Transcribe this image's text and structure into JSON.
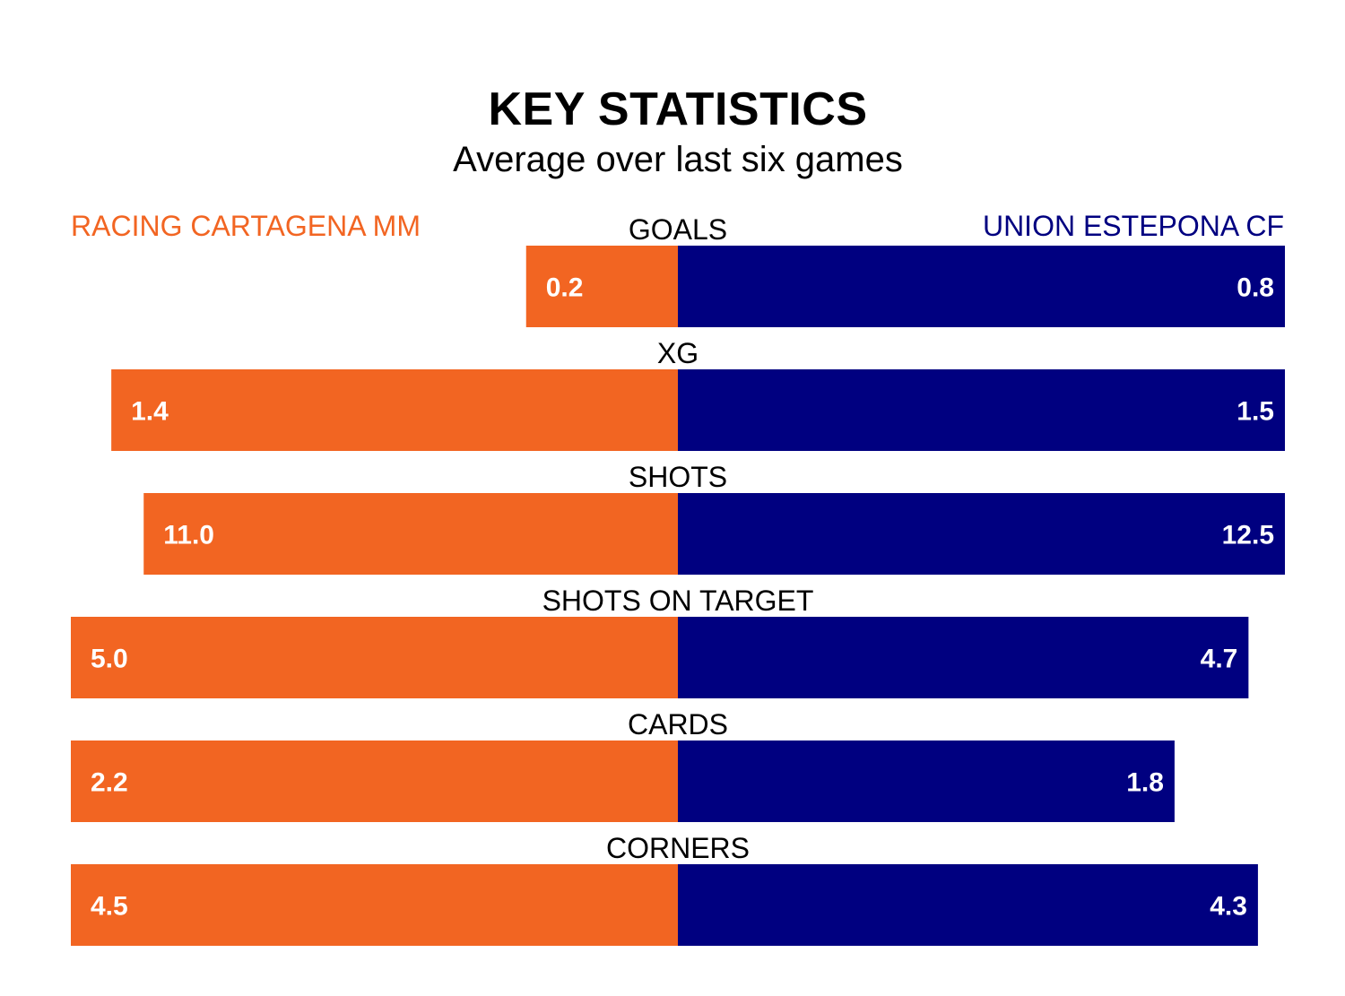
{
  "title": "KEY STATISTICS",
  "subtitle": "Average over last six games",
  "teams": {
    "left": {
      "name": "RACING CARTAGENA MM",
      "color": "#F26522"
    },
    "right": {
      "name": "UNION ESTEPONA CF",
      "color": "#000080"
    }
  },
  "colors": {
    "value_text_inside": "#ffffff",
    "value_text_outside": "#000000",
    "category_text": "#000000"
  },
  "chart_data": {
    "type": "bar",
    "orientation": "horizontal-diverging",
    "title": "KEY STATISTICS",
    "subtitle": "Average over last six games",
    "categories": [
      "GOALS",
      "XG",
      "SHOTS",
      "SHOTS ON TARGET",
      "CARDS",
      "CORNERS"
    ],
    "series": [
      {
        "name": "RACING CARTAGENA MM",
        "values": [
          0.2,
          1.4,
          11.0,
          5.0,
          2.2,
          4.5
        ],
        "labels": [
          "0.2",
          "1.4",
          "11.0",
          "5.0",
          "2.2",
          "4.5"
        ]
      },
      {
        "name": "UNION ESTEPONA CF",
        "values": [
          0.8,
          1.5,
          12.5,
          4.7,
          1.8,
          4.3
        ],
        "labels": [
          "0.8",
          "1.5",
          "12.5",
          "4.7",
          "1.8",
          "4.3"
        ]
      }
    ],
    "scaling": "each category scaled to its own maximum",
    "legend": "top"
  }
}
